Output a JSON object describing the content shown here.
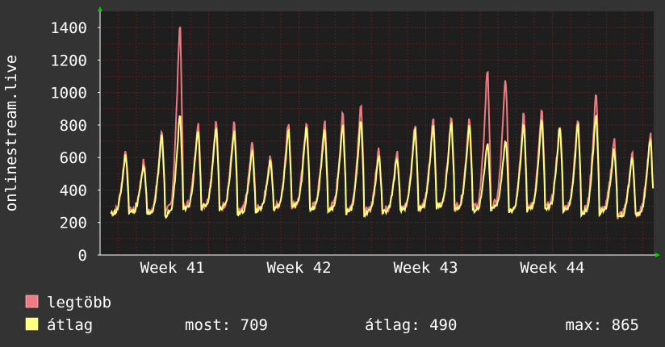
{
  "chart_data": {
    "type": "line",
    "title": "",
    "ylabel": "onlinestream.live",
    "xlabel": "",
    "ylim": [
      0,
      1500
    ],
    "y_ticks": [
      0,
      200,
      400,
      600,
      800,
      1000,
      1200,
      1400
    ],
    "x_ticks": [
      "Week 41",
      "Week 42",
      "Week 43",
      "Week 44"
    ],
    "x_tick_days": [
      4,
      11,
      18,
      25
    ],
    "x_range_days": [
      0,
      30.6
    ],
    "grid": true,
    "legend_placement": "bottom-left",
    "colors": {
      "background": "#333333",
      "plot": "#1e1e1e",
      "grid": "#6e2a2a",
      "axis": "#ffffff",
      "arrow": "#00cc00",
      "max_series": "#f07a82",
      "avg_series": "#ffff7f"
    },
    "daily_peaks_max": [
      640,
      570,
      760,
      1400,
      810,
      810,
      800,
      680,
      600,
      810,
      820,
      810,
      850,
      920,
      650,
      620,
      800,
      820,
      830,
      840,
      1130,
      1070,
      870,
      880,
      800,
      830,
      980,
      700,
      610,
      730
    ],
    "daily_troughs": [
      260,
      270,
      260,
      250,
      290,
      300,
      290,
      260,
      280,
      290,
      300,
      290,
      280,
      270,
      260,
      270,
      280,
      290,
      300,
      290,
      280,
      290,
      270,
      280,
      290,
      280,
      260,
      270,
      240,
      250
    ],
    "daily_peaks_avg": [
      610,
      540,
      730,
      850,
      760,
      770,
      760,
      630,
      580,
      770,
      780,
      770,
      790,
      820,
      610,
      590,
      760,
      790,
      800,
      790,
      680,
      700,
      800,
      820,
      770,
      790,
      860,
      640,
      590,
      709
    ],
    "series": [
      {
        "name": "legtöbb",
        "key": "max"
      },
      {
        "name": "átlag",
        "key": "avg"
      }
    ]
  },
  "legend": {
    "max_label": "legtöbb",
    "avg_label": "átlag",
    "stats": {
      "now": "most: 709",
      "avg": "átlag: 490",
      "max": "max: 865"
    }
  }
}
